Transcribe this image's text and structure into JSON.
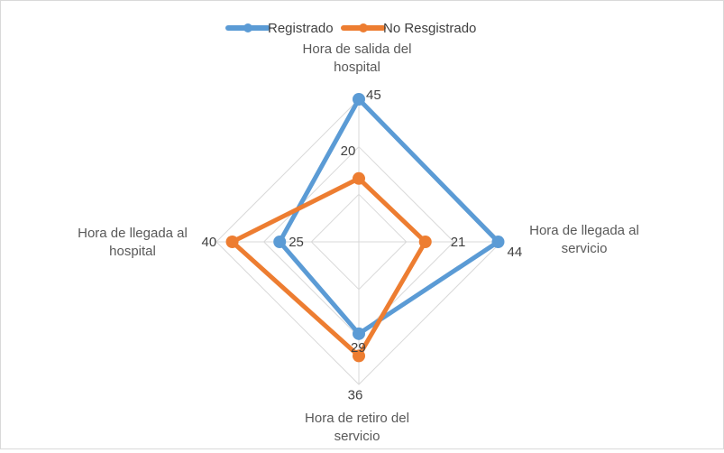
{
  "chart_data": {
    "type": "radar",
    "axes": [
      "Hora de salida del hospital",
      "Hora de llegada al servicio",
      "Hora de retiro del servicio",
      "Hora de llegada al hospital"
    ],
    "axis_label_lines": [
      [
        "Hora de salida del",
        "hospital"
      ],
      [
        "Hora de llegada al",
        "servicio"
      ],
      [
        "Hora de retiro del",
        "servicio"
      ],
      [
        "Hora de llegada al",
        "hospital"
      ]
    ],
    "series": [
      {
        "name": "Registrado",
        "color": "#5b9bd5",
        "values": [
          45,
          44,
          29,
          25
        ]
      },
      {
        "name": "No Resgistrado",
        "color": "#ed7d31",
        "values": [
          20,
          21,
          36,
          40
        ]
      }
    ],
    "r_max": 45,
    "gridlines": 3,
    "grid": true,
    "legend": "top-center"
  }
}
